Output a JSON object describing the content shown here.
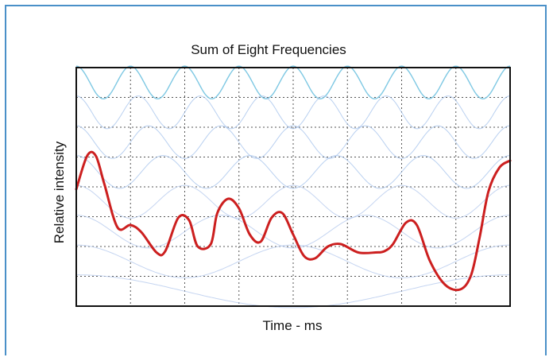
{
  "chart_data": {
    "type": "line",
    "title": "Sum of Eight Frequencies",
    "xlabel": "Time - ms",
    "ylabel": "Relative intensity",
    "xlim": [
      0,
      10
    ],
    "ylim": [
      0,
      10
    ],
    "grid": true,
    "grid_style": "dotted",
    "x_ticks_shown": false,
    "y_ticks_shown": false,
    "component_count": 8,
    "component_colors": [
      "#7ec8e3",
      "#a8c4ec",
      "#b6cbee"
    ],
    "sum_color": "#cc1f1f",
    "series": [
      {
        "x": [
          0,
          0.25,
          0.45,
          0.65,
          0.95,
          1.25,
          1.5,
          1.85,
          2.05,
          2.35,
          2.6,
          2.8,
          3.1,
          3.25,
          3.5,
          3.75,
          4.0,
          4.25,
          4.5,
          4.75,
          5.0,
          5.25,
          5.5,
          5.8,
          6.1,
          6.5,
          6.9,
          7.1,
          7.3,
          7.6,
          7.85,
          8.15,
          8.5,
          8.85,
          9.1,
          9.3,
          9.5,
          9.75,
          10.0
        ],
        "values": [
          4.9,
          6.3,
          6.3,
          5.1,
          3.3,
          3.4,
          3.1,
          2.25,
          2.3,
          3.7,
          3.6,
          2.5,
          2.6,
          3.9,
          4.5,
          4.1,
          3.0,
          2.7,
          3.7,
          3.9,
          3.0,
          2.1,
          2.0,
          2.5,
          2.6,
          2.25,
          2.25,
          2.3,
          2.6,
          3.5,
          3.4,
          1.9,
          0.9,
          0.7,
          1.3,
          2.9,
          4.8,
          5.8,
          6.1
        ]
      }
    ]
  }
}
